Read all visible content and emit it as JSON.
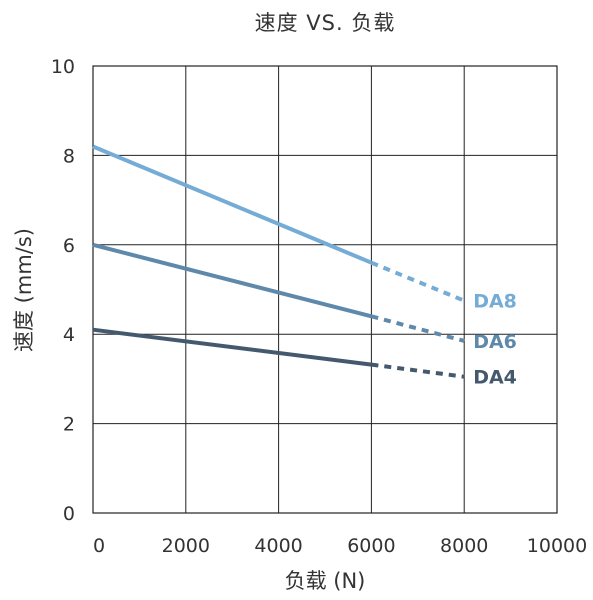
{
  "chart_data": {
    "type": "line",
    "title": "速度 VS. 负载",
    "xlabel": "负载 (N)",
    "ylabel": "速度 (mm/s)",
    "xlim": [
      0,
      10000
    ],
    "ylim": [
      0,
      10
    ],
    "xticks": [
      0,
      2000,
      4000,
      6000,
      8000,
      10000
    ],
    "yticks": [
      0,
      2,
      4,
      6,
      8,
      10
    ],
    "grid": true,
    "series": [
      {
        "name": "DA8",
        "color": "#74acd6",
        "solid": [
          [
            0,
            8.2
          ],
          [
            6000,
            5.6
          ]
        ],
        "dashed": [
          [
            6000,
            5.6
          ],
          [
            8000,
            4.75
          ]
        ]
      },
      {
        "name": "DA6",
        "color": "#5f89ab",
        "solid": [
          [
            0,
            6.0
          ],
          [
            6000,
            4.4
          ]
        ],
        "dashed": [
          [
            6000,
            4.4
          ],
          [
            8000,
            3.85
          ]
        ]
      },
      {
        "name": "DA4",
        "color": "#45596e",
        "solid": [
          [
            0,
            4.1
          ],
          [
            6000,
            3.32
          ]
        ],
        "dashed": [
          [
            6000,
            3.32
          ],
          [
            8000,
            3.05
          ]
        ]
      }
    ]
  }
}
